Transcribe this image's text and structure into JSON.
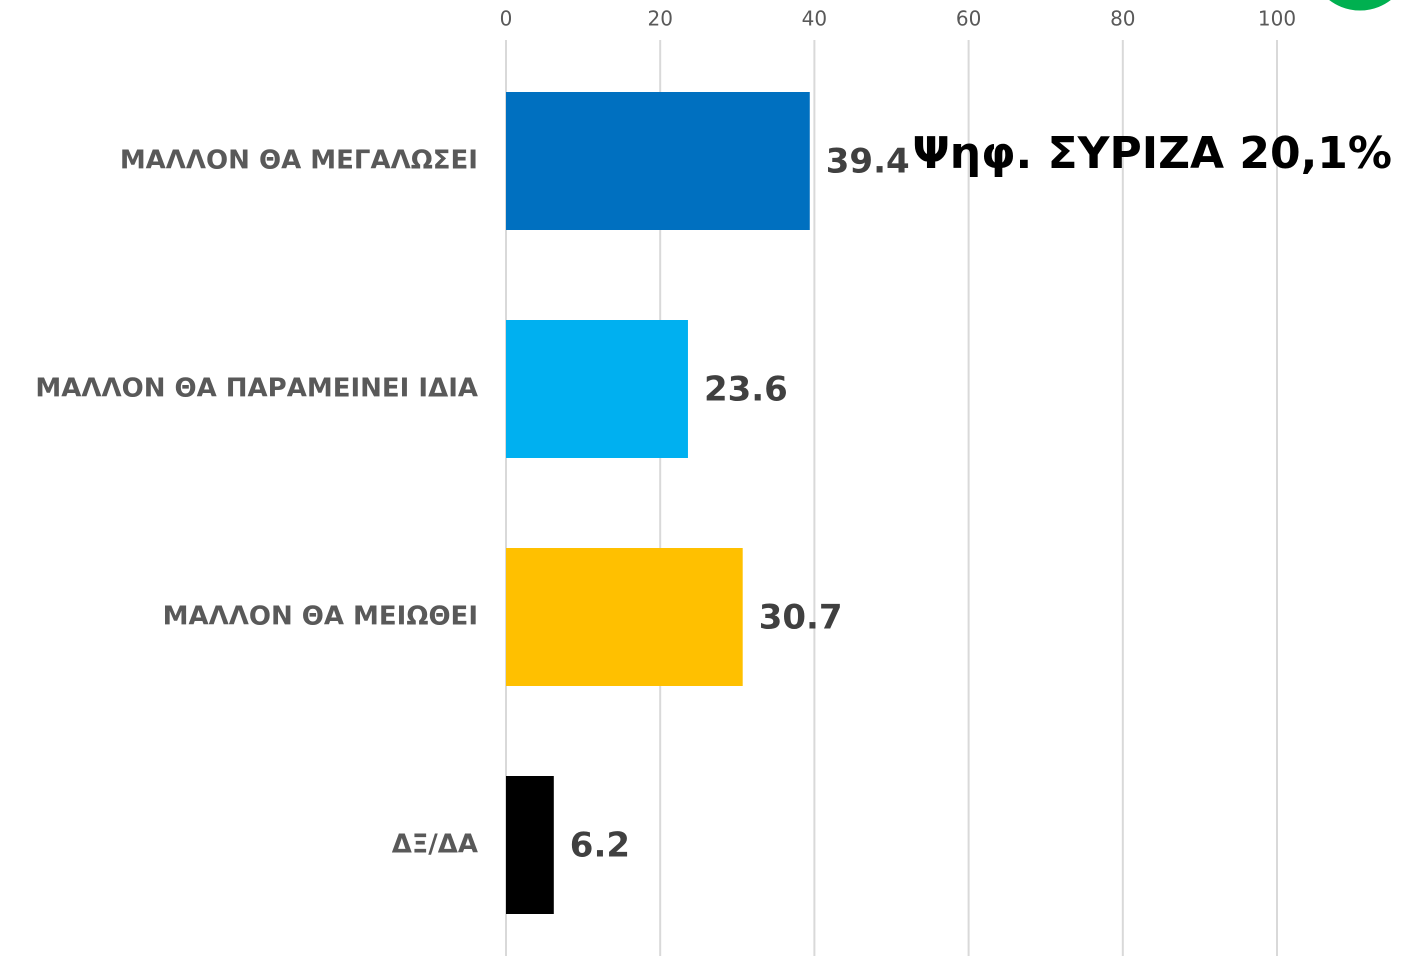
{
  "chart_data": {
    "type": "bar",
    "orientation": "horizontal",
    "categories": [
      "ΜΑΛΛΟΝ ΘΑ ΜΕΓΑΛΩΣΕΙ",
      "ΜΑΛΛΟΝ ΘΑ ΠΑΡΑΜΕΙΝΕΙ ΙΔΙΑ",
      "ΜΑΛΛΟΝ ΘΑ ΜΕΙΩΘΕΙ",
      "ΔΞ/ΔΑ"
    ],
    "values": [
      39.4,
      23.6,
      30.7,
      6.2
    ],
    "colors": [
      "#0070c0",
      "#00b0f0",
      "#ffc000",
      "#000000"
    ],
    "xlim": [
      0,
      100
    ],
    "xticks": [
      0,
      20,
      40,
      60,
      80,
      100
    ],
    "grid": true,
    "annotation": "Ψηφ. ΣΥΡΙΖΑ 20,1%"
  }
}
